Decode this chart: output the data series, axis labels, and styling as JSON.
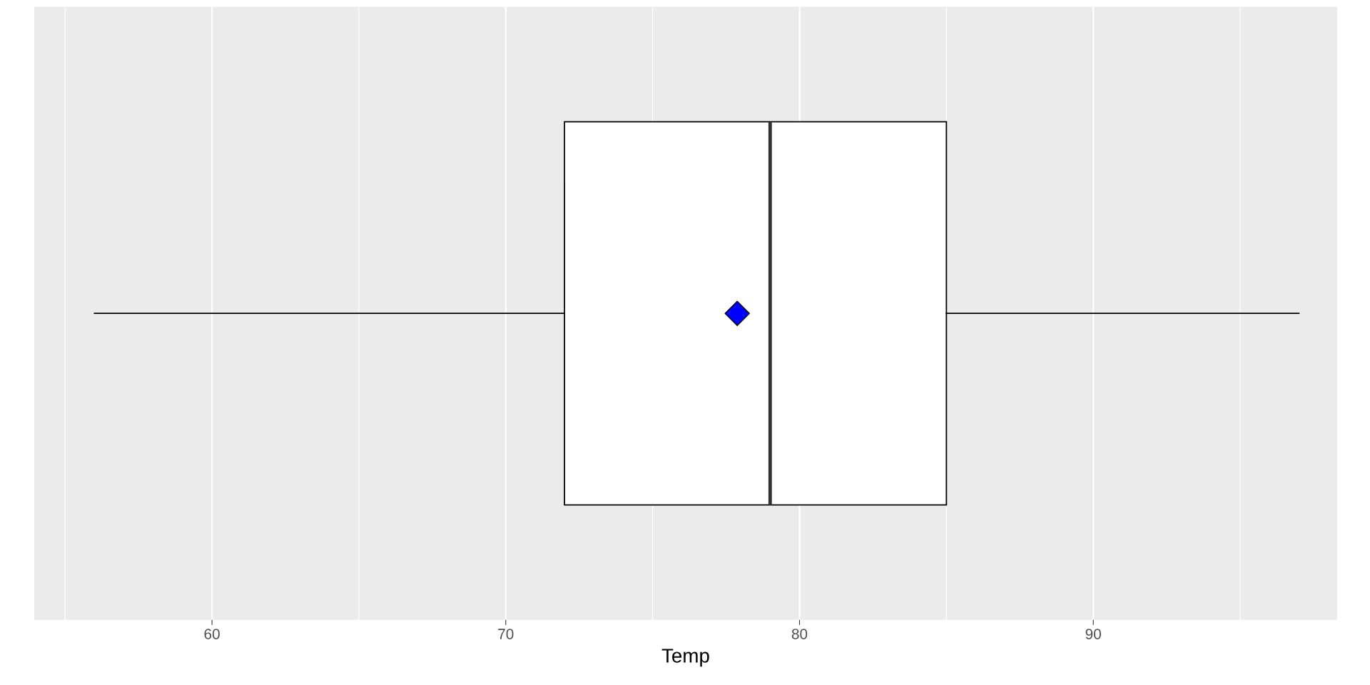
{
  "chart_data": {
    "type": "box",
    "orientation": "horizontal",
    "xlabel": "Temp",
    "categories": [
      null
    ],
    "boxes": [
      {
        "low": 56,
        "q1": 72,
        "median": 79,
        "q3": 85,
        "high": 97
      }
    ],
    "color": "#ffffff",
    "series": [
      {
        "type": "scatter",
        "color": "#0000ff",
        "values": [
          77.88
        ],
        "marker": "diamond"
      }
    ],
    "xlim": [
      53.95,
      98.3
    ],
    "xticks": [
      {
        "value": 55,
        "label": null
      },
      60,
      {
        "value": 65,
        "label": null
      },
      70,
      {
        "value": 75,
        "label": null
      },
      80,
      {
        "value": 85,
        "label": null
      },
      90,
      {
        "value": 95,
        "label": null
      }
    ],
    "grid": "x",
    "tick_labels": "x"
  }
}
